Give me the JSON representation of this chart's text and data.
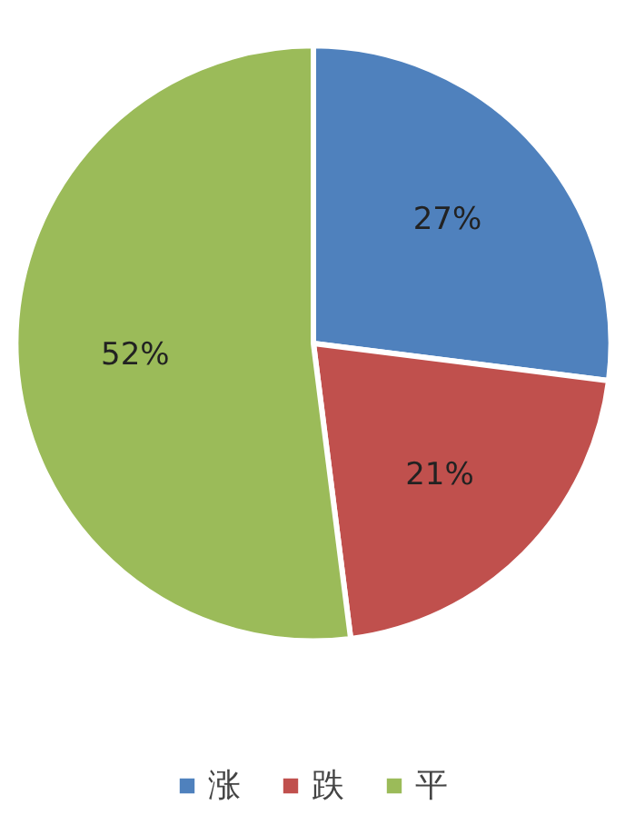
{
  "chart_data": {
    "type": "pie",
    "categories": [
      "涨",
      "跌",
      "平"
    ],
    "values": [
      27,
      21,
      52
    ],
    "colors": [
      "#4f81bd",
      "#c0504d",
      "#9bbb59"
    ],
    "value_labels": [
      "27%",
      "21%",
      "52%"
    ],
    "legend": "bottom"
  }
}
